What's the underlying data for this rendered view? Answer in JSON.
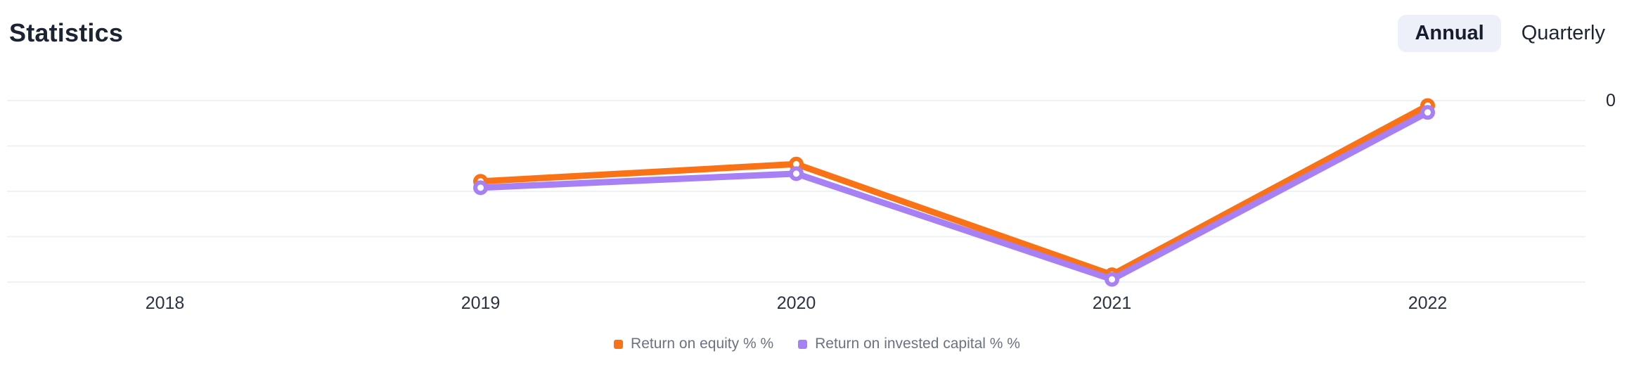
{
  "page": {
    "background": "#ffffff"
  },
  "header": {
    "title": "Statistics",
    "toggle": {
      "options": [
        {
          "label": "Annual",
          "active": true
        },
        {
          "label": "Quarterly",
          "active": false
        }
      ],
      "active_bg": "#edf0f9"
    }
  },
  "chart_data": {
    "type": "line",
    "title": "Statistics",
    "categories": [
      "2018",
      "2019",
      "2020",
      "2021",
      "2022"
    ],
    "series": [
      {
        "name": "Return on equity % %",
        "color": "#f97316",
        "values": [
          null,
          -1.78,
          -1.4,
          -3.84,
          -0.11
        ]
      },
      {
        "name": "Return on invested capital % %",
        "color": "#a880f5",
        "values": [
          null,
          -1.92,
          -1.61,
          -3.94,
          -0.26
        ]
      }
    ],
    "y_axis": {
      "position": "right",
      "visible_tick_labels": [
        "0"
      ],
      "tick_step": 1
    },
    "ylim": [
      -4,
      0
    ],
    "grid": true,
    "gridline_count": 5,
    "gridline_color": "#edf1f8",
    "axis_text_color": "#2b3342",
    "legend_text_color": "#6b7280",
    "legend_position": "bottom",
    "marker_style": "open-circle"
  }
}
